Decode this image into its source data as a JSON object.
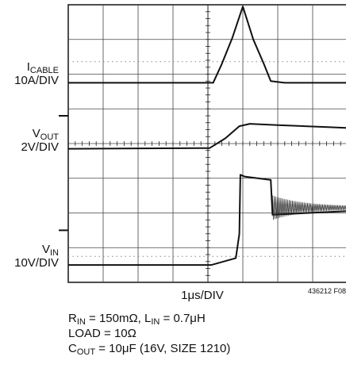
{
  "chart_data": {
    "type": "line",
    "title": "",
    "x_scale_label": "1μs/DIV",
    "figure_id": "436212 F08",
    "grid": true,
    "divisions": {
      "x": 8,
      "y": 8,
      "x_first_division_index": 0
    },
    "traces": [
      {
        "name_main": "I",
        "name_sub": "CABLE",
        "scale": "10A/DIV",
        "ground_div": 2.25,
        "points_div": [
          [
            0,
            0
          ],
          [
            4.15,
            0
          ],
          [
            4.4,
            0.55
          ],
          [
            4.7,
            1.3
          ],
          [
            5.0,
            2.2
          ],
          [
            5.3,
            1.25
          ],
          [
            5.6,
            0.55
          ],
          [
            5.8,
            0.05
          ],
          [
            6.2,
            0
          ],
          [
            10,
            0
          ]
        ],
        "ripple": false
      },
      {
        "name_main": "V",
        "name_sub": "OUT",
        "scale": "2V/DIV",
        "ground_div": 4.15,
        "points_div": [
          [
            0,
            0
          ],
          [
            4.05,
            0.02
          ],
          [
            4.5,
            0.3
          ],
          [
            4.9,
            0.65
          ],
          [
            5.2,
            0.72
          ],
          [
            6.0,
            0.68
          ],
          [
            7.5,
            0.62
          ],
          [
            10,
            0.52
          ]
        ],
        "ripple": false
      },
      {
        "name_main": "V",
        "name_sub": "IN",
        "scale": "10V/DIV",
        "ground_div": 7.5,
        "points_div": [
          [
            0,
            0
          ],
          [
            4.1,
            0
          ],
          [
            4.8,
            0.2
          ],
          [
            4.9,
            0.9
          ],
          [
            4.93,
            2.6
          ],
          [
            5.05,
            2.55
          ],
          [
            5.8,
            2.45
          ],
          [
            5.85,
            1.45
          ],
          [
            10,
            1.65
          ]
        ],
        "ripple": true
      }
    ],
    "ground_ticks_div": [
      3.2,
      6.5
    ],
    "notes": [
      [
        {
          "t": "R"
        },
        {
          "s": "IN"
        },
        {
          "t": " = 150mΩ, L"
        },
        {
          "s": "IN"
        },
        {
          "t": " = 0.7μH"
        }
      ],
      [
        {
          "t": "LOAD = 10Ω"
        }
      ],
      [
        {
          "t": "C"
        },
        {
          "s": "OUT"
        },
        {
          "t": " = 10μF (16V, SIZE 1210)"
        }
      ]
    ]
  }
}
